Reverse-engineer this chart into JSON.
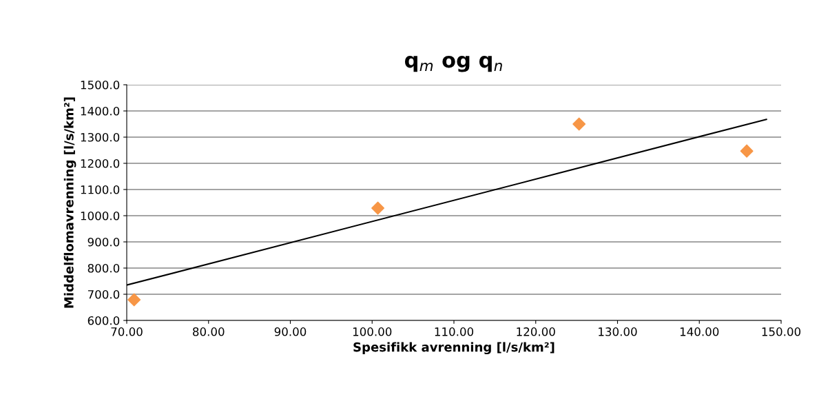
{
  "chart_data": {
    "type": "scatter",
    "title": "q$_{m}$ og q$_{n}$",
    "xlabel": "Spesifikk avrenning [l/s/km²]",
    "ylabel": "Middelflomavrenning [l/s/km²]",
    "x": [
      70.9,
      100.7,
      125.3,
      145.8
    ],
    "series": [
      {
        "color": "#f79646",
        "marker": "diamond",
        "values": [
          679,
          1029,
          1350,
          1247
        ]
      },
      {
        "type": "line",
        "color": "#000000",
        "marker": "none",
        "line_style": "solid",
        "x": [
          70.0,
          148.2
        ],
        "values": [
          735,
          1368
        ]
      }
    ],
    "xlim": [
      70,
      150
    ],
    "xticks": [
      {
        "value": 70,
        "label": "70.00"
      },
      {
        "value": 80,
        "label": "80.00"
      },
      {
        "value": 90,
        "label": "90.00"
      },
      {
        "value": 100,
        "label": "100.00"
      },
      {
        "value": 110,
        "label": "110.00"
      },
      {
        "value": 120,
        "label": "120.00"
      },
      {
        "value": 130,
        "label": "130.00"
      },
      {
        "value": 140,
        "label": "140.00"
      },
      {
        "value": 150,
        "label": "150.00"
      }
    ],
    "ylim": [
      600,
      1500
    ],
    "yticks": [
      {
        "value": 600,
        "label": "600.0"
      },
      {
        "value": 700,
        "label": "700.0"
      },
      {
        "value": 800,
        "label": "800.0"
      },
      {
        "value": 900,
        "label": "900.0"
      },
      {
        "value": 1000,
        "label": "1000.0"
      },
      {
        "value": 1100,
        "label": "1100.0"
      },
      {
        "value": 1200,
        "label": "1200.0"
      },
      {
        "value": 1300,
        "label": "1300.0"
      },
      {
        "value": 1400,
        "label": "1400.0"
      },
      {
        "value": 1500,
        "label": "1500.0"
      }
    ],
    "grid": "y",
    "legend": false
  }
}
